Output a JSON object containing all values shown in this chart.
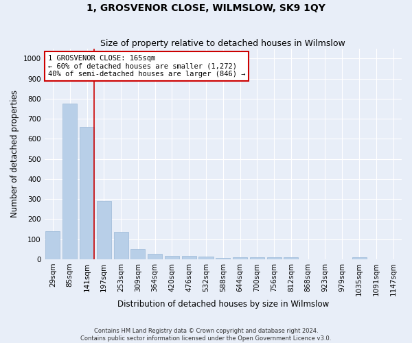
{
  "title": "1, GROSVENOR CLOSE, WILMSLOW, SK9 1QY",
  "subtitle": "Size of property relative to detached houses in Wilmslow",
  "xlabel": "Distribution of detached houses by size in Wilmslow",
  "ylabel": "Number of detached properties",
  "categories": [
    "29sqm",
    "85sqm",
    "141sqm",
    "197sqm",
    "253sqm",
    "309sqm",
    "364sqm",
    "420sqm",
    "476sqm",
    "532sqm",
    "588sqm",
    "644sqm",
    "700sqm",
    "756sqm",
    "812sqm",
    "868sqm",
    "923sqm",
    "979sqm",
    "1035sqm",
    "1091sqm",
    "1147sqm"
  ],
  "values": [
    140,
    775,
    660,
    290,
    135,
    52,
    28,
    18,
    18,
    12,
    5,
    10,
    10,
    10,
    8,
    0,
    0,
    0,
    10,
    0,
    0
  ],
  "bar_color": "#b8cfe8",
  "bar_edge_color": "#9ab8d8",
  "highlight_line_color": "#cc0000",
  "annotation_text": "1 GROSVENOR CLOSE: 165sqm\n← 60% of detached houses are smaller (1,272)\n40% of semi-detached houses are larger (846) →",
  "annotation_box_color": "#ffffff",
  "annotation_box_edge": "#cc0000",
  "ylim": [
    0,
    1050
  ],
  "yticks": [
    0,
    100,
    200,
    300,
    400,
    500,
    600,
    700,
    800,
    900,
    1000
  ],
  "footer1": "Contains HM Land Registry data © Crown copyright and database right 2024.",
  "footer2": "Contains public sector information licensed under the Open Government Licence v3.0.",
  "background_color": "#e8eef8",
  "plot_background_color": "#e8eef8",
  "title_fontsize": 10,
  "subtitle_fontsize": 9,
  "xlabel_fontsize": 8.5,
  "ylabel_fontsize": 8.5,
  "tick_fontsize": 7.5,
  "footer_fontsize": 6,
  "annotation_fontsize": 7.5
}
